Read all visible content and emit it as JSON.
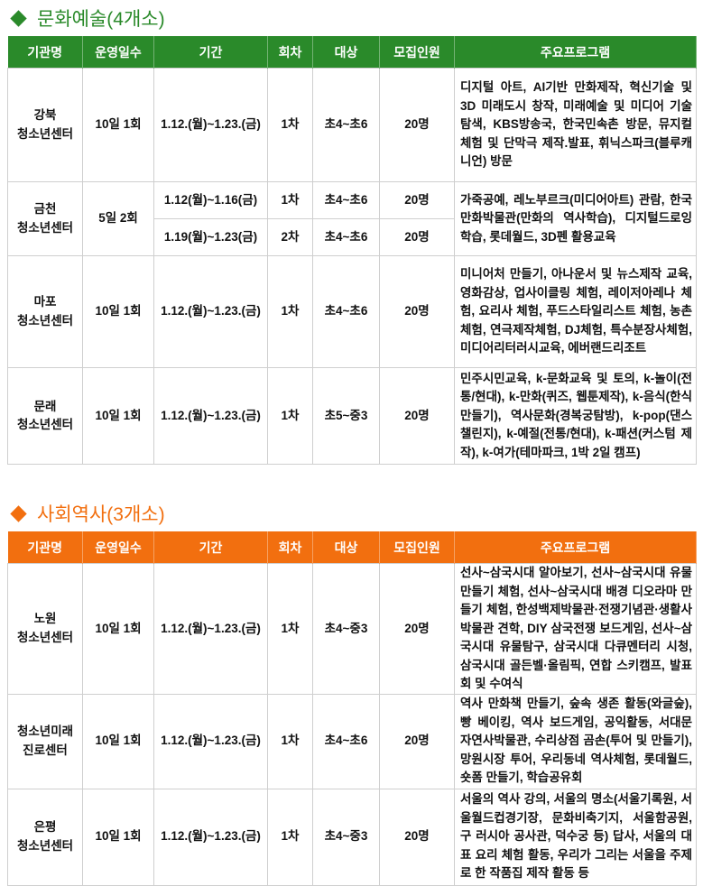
{
  "sections": [
    {
      "title": "문화예술(4개소)",
      "color": "#2a8a2a",
      "title_color": "#2a8a2a",
      "headers": [
        "기관명",
        "운영일수",
        "기간",
        "회차",
        "대상",
        "모집인원",
        "주요프로그램"
      ],
      "rows": [
        {
          "name": "강북\n청소년센터",
          "days": "10일 1회",
          "sub": [
            {
              "period": "1.12.(월)~1.23.(금)",
              "round": "1차",
              "target": "초4~초6",
              "count": "20명"
            }
          ],
          "program": "디지털 아트, AI기반 만화제작, 혁신기술 및 3D 미래도시 창작, 미래예술 및 미디어 기술 탐색, KBS방송국, 한국민속촌 방문, 뮤지컬 체험 및 단막극 제작.발표, 휘닉스파크(블루캐니언) 방문"
        },
        {
          "name": "금천\n청소년센터",
          "days": "5일 2회",
          "sub": [
            {
              "period": "1.12(월)~1.16(금)",
              "round": "1차",
              "target": "초4~초6",
              "count": "20명"
            },
            {
              "period": "1.19(월)~1.23(금)",
              "round": "2차",
              "target": "초4~초6",
              "count": "20명"
            }
          ],
          "program": "가죽공예, 레노부르크(미디어아트) 관람, 한국만화박물관(만화의 역사학습), 디지털드로잉 학습, 롯데월드, 3D펜 활용교육"
        },
        {
          "name": "마포\n청소년센터",
          "days": "10일 1회",
          "sub": [
            {
              "period": "1.12.(월)~1.23.(금)",
              "round": "1차",
              "target": "초4~초6",
              "count": "20명"
            }
          ],
          "program": "미니어처 만들기, 아나운서 및 뉴스제작 교육, 영화감상, 업사이클링 체험, 레이저아레나 체험, 요리사 체험, 푸드스타일리스트 체험, 농촌체험, 연극제작체험, DJ체험, 특수분장사체험, 미디어리터러시교육, 에버랜드리조트"
        },
        {
          "name": "문래\n청소년센터",
          "days": "10일 1회",
          "sub": [
            {
              "period": "1.12.(월)~1.23.(금)",
              "round": "1차",
              "target": "초5~중3",
              "count": "20명"
            }
          ],
          "program": "민주시민교육, k-문화교육 및 토의, k-놀이(전통/현대), k-만화(퀴즈, 웹툰제작), k-음식(한식 만들기), 역사문화(경복궁탐방), k-pop(댄스 챌린지), k-예절(전통/현대), k-패션(커스텀 제작), k-여가(테마파크, 1박 2일 캠프)"
        }
      ]
    },
    {
      "title": "사회역사(3개소)",
      "color": "#f26f0f",
      "title_color": "#f26f0f",
      "headers": [
        "기관명",
        "운영일수",
        "기간",
        "회차",
        "대상",
        "모집인원",
        "주요프로그램"
      ],
      "rows": [
        {
          "name": "노원\n청소년센터",
          "days": "10일 1회",
          "sub": [
            {
              "period": "1.12.(월)~1.23.(금)",
              "round": "1차",
              "target": "초4~중3",
              "count": "20명"
            }
          ],
          "program": "선사~삼국시대 알아보기, 선사~삼국시대 유물 만들기 체험, 선사~삼국시대 배경 디오라마 만들기 체험, 한성백제박물관·전쟁기념관·생활사박물관 견학, DIY 삼국전쟁 보드게임, 선사~삼국시대 유물탐구, 삼국시대 다큐멘터리 시청, 삼국시대 골든벨·올림픽, 연합 스키캠프, 발표회 및 수여식"
        },
        {
          "name": "청소년미래\n진로센터",
          "days": "10일 1회",
          "sub": [
            {
              "period": "1.12.(월)~1.23.(금)",
              "round": "1차",
              "target": "초4~초6",
              "count": "20명"
            }
          ],
          "program": "역사 만화책 만들기, 숲속 생존 활동(와글숲), 빵 베이킹, 역사 보드게임, 공익활동, 서대문 자연사박물관, 수리상점 곰손(투어 및 만들기), 망원시장 투어, 우리동네 역사체험, 롯데월드, 숏폼 만들기, 학습공유회"
        },
        {
          "name": "은평\n청소년센터",
          "days": "10일 1회",
          "sub": [
            {
              "period": "1.12.(월)~1.23.(금)",
              "round": "1차",
              "target": "초4~중3",
              "count": "20명"
            }
          ],
          "program": "서울의 역사 강의, 서울의 명소(서울기록원, 서울월드컵경기장, 문화비축기지, 서울함공원, 구 러시아 공사관, 덕수궁 등) 답사, 서울의 대표 요리 체험 활동, 우리가 그리는 서울을 주제로 한 작품집 제작 활동 등"
        }
      ]
    }
  ]
}
